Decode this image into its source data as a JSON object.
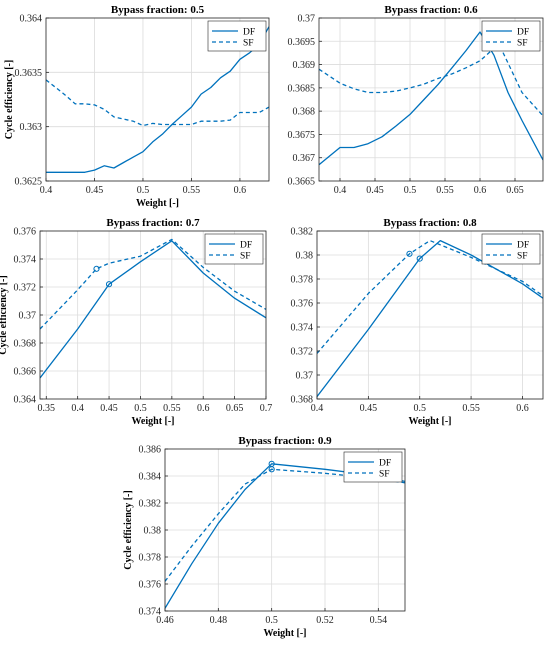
{
  "chart_data": [
    {
      "type": "line",
      "title": "Bypass fraction: 0.5",
      "xlabel": "Weight [-]",
      "ylabel": "Cycle efficiency [-]",
      "xlim": [
        0.4,
        0.63
      ],
      "ylim": [
        0.3625,
        0.364
      ],
      "xticks": [
        "0.4",
        "0.45",
        "0.5",
        "0.55",
        "0.6"
      ],
      "yticks": [
        "0.3625",
        "0.363",
        "0.3635",
        "0.364"
      ],
      "xtick_values": [
        0.4,
        0.45,
        0.5,
        0.55,
        0.6
      ],
      "ytick_values": [
        0.3625,
        0.363,
        0.3635,
        0.364
      ],
      "grid": true,
      "legend": "top-right",
      "series": [
        {
          "name": "DF",
          "style": "solid",
          "x": [
            0.4,
            0.42,
            0.44,
            0.45,
            0.46,
            0.47,
            0.48,
            0.49,
            0.5,
            0.51,
            0.52,
            0.53,
            0.54,
            0.55,
            0.56,
            0.57,
            0.58,
            0.59,
            0.6,
            0.61,
            0.62,
            0.63
          ],
          "y": [
            0.36258,
            0.36258,
            0.36258,
            0.3626,
            0.36264,
            0.36262,
            0.36267,
            0.36272,
            0.36277,
            0.36286,
            0.36293,
            0.36302,
            0.3631,
            0.36318,
            0.3633,
            0.36336,
            0.36345,
            0.36351,
            0.36362,
            0.36368,
            0.36376,
            0.36392
          ]
        },
        {
          "name": "SF",
          "style": "dashed",
          "x": [
            0.4,
            0.41,
            0.42,
            0.43,
            0.44,
            0.45,
            0.46,
            0.47,
            0.48,
            0.49,
            0.5,
            0.51,
            0.52,
            0.53,
            0.54,
            0.55,
            0.56,
            0.57,
            0.58,
            0.59,
            0.6,
            0.61,
            0.62,
            0.63
          ],
          "y": [
            0.36343,
            0.36336,
            0.36329,
            0.36321,
            0.36321,
            0.3632,
            0.36316,
            0.36309,
            0.36307,
            0.36305,
            0.36301,
            0.36303,
            0.36302,
            0.36302,
            0.36302,
            0.36302,
            0.36305,
            0.36305,
            0.36305,
            0.36306,
            0.36313,
            0.36313,
            0.36313,
            0.36318
          ]
        }
      ]
    },
    {
      "type": "line",
      "title": "Bypass fraction: 0.6",
      "xlabel": "",
      "ylabel": "",
      "xlim": [
        0.37,
        0.69
      ],
      "ylim": [
        0.3665,
        0.37
      ],
      "xticks": [
        "0.4",
        "0.45",
        "0.5",
        "0.55",
        "0.6",
        "0.65"
      ],
      "yticks": [
        "0.3665",
        "0.367",
        "0.3675",
        "0.368",
        "0.3685",
        "0.369",
        "0.3695",
        "0.37"
      ],
      "xtick_values": [
        0.4,
        0.45,
        0.5,
        0.55,
        0.6,
        0.65
      ],
      "ytick_values": [
        0.3665,
        0.367,
        0.3675,
        0.368,
        0.3685,
        0.369,
        0.3695,
        0.37
      ],
      "grid": true,
      "legend": "top-right",
      "series": [
        {
          "name": "DF",
          "style": "solid",
          "x": [
            0.37,
            0.4,
            0.42,
            0.44,
            0.46,
            0.48,
            0.5,
            0.52,
            0.54,
            0.56,
            0.58,
            0.6,
            0.62,
            0.64,
            0.66,
            0.69
          ],
          "y": [
            0.36685,
            0.36722,
            0.36722,
            0.3673,
            0.36745,
            0.36768,
            0.36793,
            0.36825,
            0.36857,
            0.36893,
            0.3693,
            0.3697,
            0.3692,
            0.3684,
            0.3678,
            0.36695
          ]
        },
        {
          "name": "SF",
          "style": "dashed",
          "x": [
            0.37,
            0.4,
            0.42,
            0.44,
            0.46,
            0.48,
            0.5,
            0.52,
            0.54,
            0.56,
            0.58,
            0.6,
            0.62,
            0.63,
            0.66,
            0.69
          ],
          "y": [
            0.3689,
            0.3686,
            0.36848,
            0.3684,
            0.3684,
            0.36843,
            0.3685,
            0.36858,
            0.3687,
            0.3688,
            0.36893,
            0.36908,
            0.36935,
            0.36935,
            0.3684,
            0.3679
          ]
        }
      ]
    },
    {
      "type": "line",
      "title": "Bypass fraction: 0.7",
      "xlabel": "Weight [-]",
      "ylabel": "Cycle efficiency [-]",
      "xlim": [
        0.34,
        0.7
      ],
      "ylim": [
        0.364,
        0.376
      ],
      "xticks": [
        "0.35",
        "0.4",
        "0.45",
        "0.5",
        "0.55",
        "0.6",
        "0.65",
        "0.7"
      ],
      "yticks": [
        "0.364",
        "0.366",
        "0.368",
        "0.37",
        "0.372",
        "0.374",
        "0.376"
      ],
      "xtick_values": [
        0.35,
        0.4,
        0.45,
        0.5,
        0.55,
        0.6,
        0.65,
        0.7
      ],
      "ytick_values": [
        0.364,
        0.366,
        0.368,
        0.37,
        0.372,
        0.374,
        0.376
      ],
      "grid": true,
      "legend": "top-right",
      "series": [
        {
          "name": "DF",
          "style": "solid",
          "x": [
            0.34,
            0.4,
            0.45,
            0.5,
            0.55,
            0.6,
            0.65,
            0.7
          ],
          "y": [
            0.3655,
            0.369,
            0.3722,
            0.3738,
            0.3753,
            0.373,
            0.3712,
            0.3698
          ]
        },
        {
          "name": "SF",
          "style": "dashed",
          "x": [
            0.34,
            0.4,
            0.43,
            0.45,
            0.5,
            0.55,
            0.6,
            0.65,
            0.7
          ],
          "y": [
            0.369,
            0.3718,
            0.3733,
            0.3737,
            0.3742,
            0.3754,
            0.3734,
            0.3717,
            0.3704
          ]
        }
      ],
      "markers": [
        {
          "series": "DF",
          "x": 0.45,
          "y": 0.3722
        },
        {
          "series": "SF",
          "x": 0.43,
          "y": 0.3733
        }
      ]
    },
    {
      "type": "line",
      "title": "Bypass fraction: 0.8",
      "xlabel": "Weight [-]",
      "ylabel": "",
      "xlim": [
        0.4,
        0.62
      ],
      "ylim": [
        0.368,
        0.382
      ],
      "xticks": [
        "0.4",
        "0.45",
        "0.5",
        "0.55",
        "0.6"
      ],
      "yticks": [
        "0.368",
        "0.37",
        "0.372",
        "0.374",
        "0.376",
        "0.378",
        "0.38",
        "0.382"
      ],
      "xtick_values": [
        0.4,
        0.45,
        0.5,
        0.55,
        0.6
      ],
      "ytick_values": [
        0.368,
        0.37,
        0.372,
        0.374,
        0.376,
        0.378,
        0.38,
        0.382
      ],
      "grid": true,
      "legend": "top-right",
      "series": [
        {
          "name": "DF",
          "style": "solid",
          "x": [
            0.4,
            0.45,
            0.5,
            0.52,
            0.55,
            0.6,
            0.62
          ],
          "y": [
            0.3682,
            0.3738,
            0.3797,
            0.3812,
            0.38,
            0.3776,
            0.3764
          ]
        },
        {
          "name": "SF",
          "style": "dashed",
          "x": [
            0.4,
            0.45,
            0.49,
            0.51,
            0.55,
            0.6,
            0.62
          ],
          "y": [
            0.3718,
            0.3768,
            0.3801,
            0.3812,
            0.3798,
            0.3778,
            0.3766
          ]
        }
      ],
      "markers": [
        {
          "series": "DF",
          "x": 0.5,
          "y": 0.3797
        },
        {
          "series": "SF",
          "x": 0.49,
          "y": 0.3801
        }
      ]
    },
    {
      "type": "line",
      "title": "Bypass fraction: 0.9",
      "xlabel": "Weight [-]",
      "ylabel": "Cycle efficiency [-]",
      "xlim": [
        0.46,
        0.55
      ],
      "ylim": [
        0.374,
        0.386
      ],
      "xticks": [
        "0.46",
        "0.48",
        "0.5",
        "0.52",
        "0.54"
      ],
      "yticks": [
        "0.374",
        "0.376",
        "0.378",
        "0.38",
        "0.382",
        "0.384",
        "0.386"
      ],
      "xtick_values": [
        0.46,
        0.48,
        0.5,
        0.52,
        0.54
      ],
      "ytick_values": [
        0.374,
        0.376,
        0.378,
        0.38,
        0.382,
        0.384,
        0.386
      ],
      "grid": true,
      "legend": "top-right",
      "series": [
        {
          "name": "DF",
          "style": "solid",
          "x": [
            0.46,
            0.47,
            0.48,
            0.49,
            0.5,
            0.52,
            0.54,
            0.55
          ],
          "y": [
            0.3742,
            0.3775,
            0.3805,
            0.383,
            0.3849,
            0.3845,
            0.384,
            0.3836
          ]
        },
        {
          "name": "SF",
          "style": "dashed",
          "x": [
            0.46,
            0.47,
            0.48,
            0.49,
            0.5,
            0.52,
            0.54,
            0.55
          ],
          "y": [
            0.3762,
            0.3788,
            0.3812,
            0.3834,
            0.3845,
            0.3842,
            0.3838,
            0.3835
          ]
        }
      ],
      "markers": [
        {
          "series": "DF",
          "x": 0.5,
          "y": 0.3849
        },
        {
          "series": "SF",
          "x": 0.5,
          "y": 0.3845
        }
      ]
    }
  ],
  "style": {
    "line_color": "#0072BD",
    "grid_color": "#dcdcdc",
    "axis_color": "#262626"
  }
}
